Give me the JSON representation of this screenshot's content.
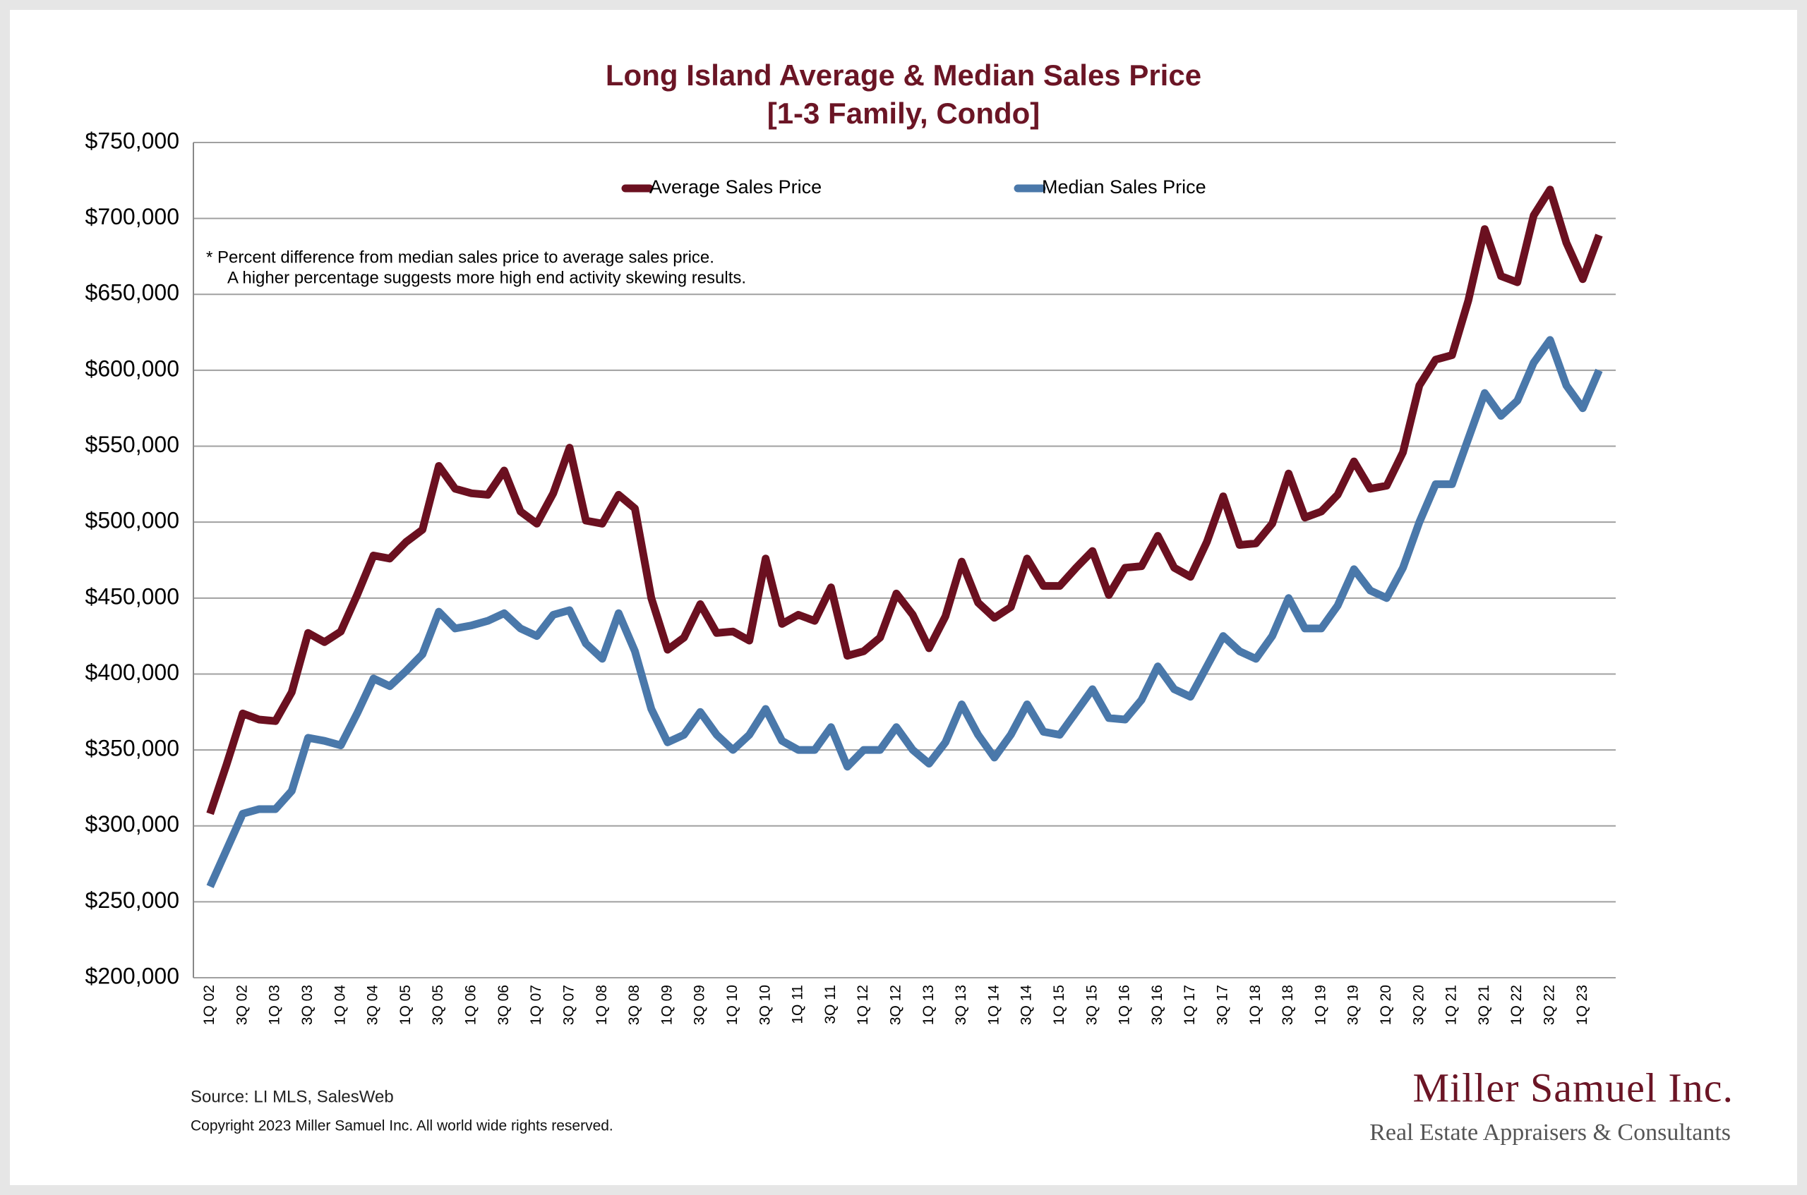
{
  "chart_data": {
    "type": "line",
    "title": [
      "Long Island Average & Median Sales Price",
      "[1-3 Family, Condo]"
    ],
    "note": [
      "*  Percent difference from median sales price to average sales price.",
      "A higher percentage suggests more high end activity skewing results."
    ],
    "source": "Source:  LI MLS, SalesWeb",
    "copyright": "Copyright 2023 Miller Samuel Inc.  All world wide rights reserved.",
    "brand": "Miller Samuel Inc.",
    "tagline": "Real Estate Appraisers & Consultants",
    "categories": [
      "1Q 02",
      null,
      "3Q 02",
      null,
      "1Q 03",
      null,
      "3Q 03",
      null,
      "1Q 04",
      null,
      "3Q 04",
      null,
      "1Q 05",
      null,
      "3Q 05",
      null,
      "1Q 06",
      null,
      "3Q 06",
      null,
      "1Q 07",
      null,
      "3Q 07",
      null,
      "1Q 08",
      null,
      "3Q 08",
      null,
      "1Q 09",
      null,
      "3Q 09",
      null,
      "1Q 10",
      null,
      "3Q 10",
      null,
      "1Q 11",
      null,
      "3Q 11",
      null,
      "1Q 12",
      null,
      "3Q 12",
      null,
      "1Q 13",
      null,
      "3Q 13",
      null,
      "1Q 14",
      null,
      "3Q 14",
      null,
      "1Q 15",
      null,
      "3Q 15",
      null,
      "1Q 16",
      null,
      "3Q 16",
      null,
      "1Q 17",
      null,
      "3Q 17",
      null,
      "1Q 18",
      null,
      "3Q 18",
      null,
      "1Q 19",
      null,
      "3Q 19",
      null,
      "1Q 20",
      null,
      "3Q 20",
      null,
      "1Q 21",
      null,
      "3Q 21",
      null,
      "1Q 22",
      null,
      "3Q 22",
      null,
      "1Q 23",
      null
    ],
    "series": [
      {
        "name": "Average Sales Price",
        "color": "#6b1020",
        "values": [
          308000,
          340000,
          374000,
          370000,
          369000,
          388000,
          427000,
          421000,
          428000,
          452000,
          478000,
          476000,
          487000,
          495000,
          537000,
          522000,
          519000,
          518000,
          534000,
          507000,
          499000,
          519000,
          549000,
          501000,
          499000,
          518000,
          509000,
          450000,
          416000,
          424000,
          446000,
          427000,
          428000,
          422000,
          476000,
          433000,
          439000,
          435000,
          457000,
          412000,
          415000,
          424000,
          453000,
          439000,
          417000,
          438000,
          474000,
          447000,
          437000,
          444000,
          476000,
          458000,
          458000,
          470000,
          481000,
          452000,
          470000,
          471000,
          491000,
          470000,
          464000,
          487000,
          517000,
          485000,
          486000,
          499000,
          532000,
          503000,
          507000,
          518000,
          540000,
          522000,
          524000,
          546000,
          590000,
          607000,
          610000,
          646000,
          693000,
          662000,
          658000,
          702000,
          719000,
          684000,
          660000,
          689000
        ]
      },
      {
        "name": "Median Sales Price",
        "color": "#4a78aa",
        "values": [
          260000,
          284000,
          308000,
          311000,
          311000,
          323000,
          358000,
          356000,
          353000,
          374000,
          397000,
          392000,
          402000,
          413000,
          441000,
          430000,
          432000,
          435000,
          440000,
          430000,
          425000,
          439000,
          442000,
          420000,
          410000,
          440000,
          415000,
          377000,
          355000,
          360000,
          375000,
          360000,
          350000,
          360000,
          377000,
          356000,
          350000,
          350000,
          365000,
          339000,
          350000,
          350000,
          365000,
          350000,
          341000,
          355000,
          380000,
          360000,
          345000,
          360000,
          380000,
          362000,
          360000,
          375000,
          390000,
          371000,
          370000,
          383000,
          405000,
          390000,
          385000,
          405000,
          425000,
          415000,
          410000,
          425000,
          450000,
          430000,
          430000,
          445000,
          469000,
          455000,
          450000,
          470000,
          500000,
          525000,
          525000,
          555000,
          585000,
          570000,
          580000,
          605000,
          620000,
          590000,
          575000,
          600000
        ]
      }
    ],
    "ylim": [
      200000,
      750000
    ],
    "yticks": [
      {
        "value": 200000,
        "label": "$200,000"
      },
      {
        "value": 250000,
        "label": "$250,000"
      },
      {
        "value": 300000,
        "label": "$300,000"
      },
      {
        "value": 350000,
        "label": "$350,000"
      },
      {
        "value": 400000,
        "label": "$400,000"
      },
      {
        "value": 450000,
        "label": "$450,000"
      },
      {
        "value": 500000,
        "label": "$500,000"
      },
      {
        "value": 550000,
        "label": "$550,000"
      },
      {
        "value": 600000,
        "label": "$600,000"
      },
      {
        "value": 650000,
        "label": "$650,000"
      },
      {
        "value": 700000,
        "label": "$700,000"
      },
      {
        "value": 750000,
        "label": "$750,000"
      }
    ],
    "grid": true,
    "legend": "top"
  }
}
